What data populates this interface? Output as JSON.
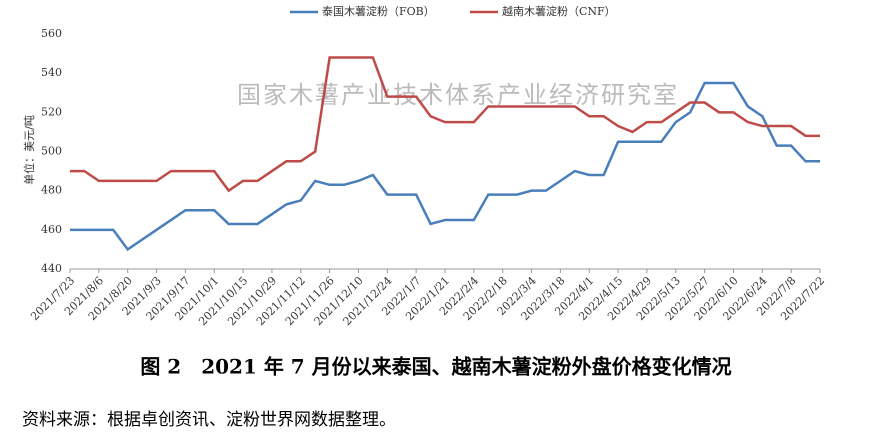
{
  "chart_data": {
    "type": "line",
    "title": "图 2　2021 年 7 月份以来泰国、越南木薯淀粉外盘价格变化情况",
    "note": "资料来源：根据卓创资讯、淀粉世界网数据整理。",
    "watermark": "国家木薯产业技术体系产业经济研究室",
    "y_label": "单位：美元/吨",
    "categories": [
      "2021/7/23",
      null,
      "2021/8/6",
      null,
      "2021/8/20",
      null,
      "2021/9/3",
      null,
      "2021/9/17",
      null,
      "2021/10/1",
      null,
      "2021/10/15",
      null,
      "2021/10/29",
      null,
      "2021/11/12",
      null,
      "2021/11/26",
      null,
      "2021/12/10",
      null,
      "2021/12/24",
      null,
      "2022/1/7",
      null,
      "2022/1/21",
      null,
      "2022/2/4",
      null,
      "2022/2/18",
      null,
      "2022/3/4",
      null,
      "2022/3/18",
      null,
      "2022/4/1",
      null,
      "2022/4/15",
      null,
      "2022/4/29",
      null,
      "2022/5/13",
      null,
      "2022/5/27",
      null,
      "2022/6/10",
      null,
      "2022/6/24",
      null,
      "2022/7/8",
      null,
      "2022/7/22"
    ],
    "series": [
      {
        "name": "泰国木薯淀粉（FOB）",
        "color": "#4a7ebb",
        "values": [
          460,
          460,
          460,
          460,
          450,
          455,
          460,
          465,
          470,
          470,
          470,
          463,
          463,
          463,
          468,
          473,
          475,
          485,
          483,
          483,
          485,
          488,
          478,
          478,
          478,
          463,
          465,
          465,
          465,
          478,
          478,
          478,
          480,
          480,
          485,
          490,
          488,
          488,
          505,
          505,
          505,
          505,
          515,
          520,
          535,
          535,
          535,
          523,
          518,
          503,
          503,
          495,
          495
        ]
      },
      {
        "name": "越南木薯淀粉（CNF）",
        "color": "#be4b48",
        "values": [
          490,
          490,
          485,
          485,
          485,
          485,
          485,
          490,
          490,
          490,
          490,
          480,
          485,
          485,
          490,
          495,
          495,
          500,
          548,
          548,
          548,
          548,
          528,
          528,
          528,
          518,
          515,
          515,
          515,
          523,
          523,
          523,
          523,
          523,
          523,
          523,
          518,
          518,
          513,
          510,
          515,
          515,
          520,
          525,
          525,
          520,
          520,
          515,
          513,
          513,
          513,
          508,
          508
        ]
      }
    ],
    "ylim": [
      440,
      560
    ],
    "yticks": [
      440,
      460,
      480,
      500,
      520,
      540,
      560
    ],
    "legend": "top"
  }
}
